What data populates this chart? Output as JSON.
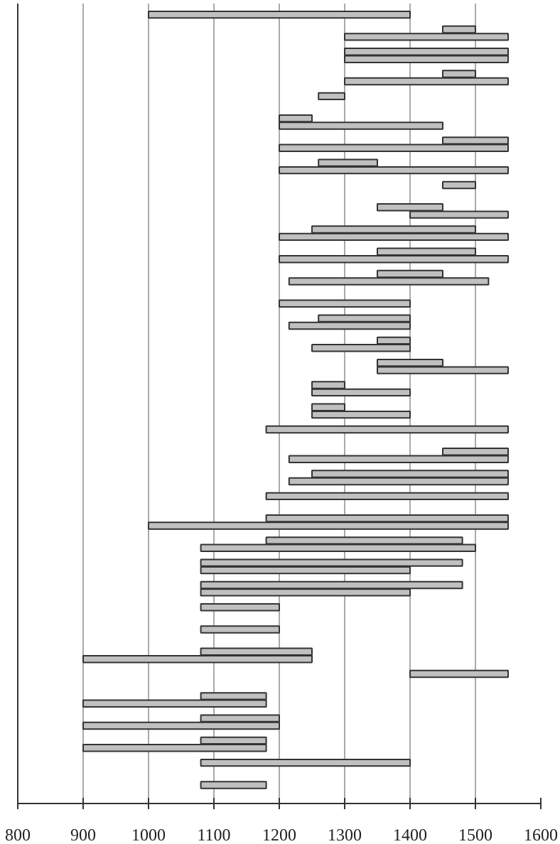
{
  "chart_data": {
    "type": "bar",
    "orientation": "horizontal",
    "color": "#c0c0c0",
    "categories": [
      null,
      null,
      null,
      null,
      null,
      null,
      null,
      null,
      null,
      null,
      null,
      null,
      null,
      null,
      null,
      null,
      null,
      null,
      null,
      null,
      null,
      null,
      null,
      null,
      null,
      null,
      null,
      null,
      null,
      null,
      null,
      null,
      null,
      null,
      null,
      null,
      null,
      null,
      null,
      null,
      null,
      null,
      null,
      null,
      null,
      null,
      null,
      null,
      null,
      null,
      null,
      null,
      null,
      null,
      null,
      null,
      null,
      null,
      null,
      null,
      null,
      null,
      null,
      null,
      null,
      null,
      null,
      null,
      null,
      null,
      null,
      null,
      null,
      null,
      null,
      null,
      null,
      null,
      null,
      null,
      null,
      null,
      null,
      null,
      null,
      null,
      null,
      null,
      null,
      null,
      null,
      null,
      null,
      null,
      null,
      null,
      null,
      null,
      null,
      null,
      null,
      null,
      null,
      null,
      null,
      null,
      null,
      null
    ],
    "base": [
      null,
      1000,
      null,
      1450,
      1300,
      null,
      1300,
      1300,
      null,
      1450,
      1300,
      null,
      1260,
      null,
      null,
      1200,
      1200,
      null,
      1450,
      1200,
      null,
      1260,
      1200,
      null,
      1450,
      null,
      null,
      1350,
      1400,
      null,
      1250,
      1200,
      null,
      1350,
      1200,
      null,
      1350,
      1215,
      null,
      null,
      1200,
      null,
      1260,
      1215,
      null,
      1350,
      1250,
      null,
      1350,
      1350,
      null,
      1250,
      1250,
      null,
      1250,
      1250,
      null,
      1180,
      null,
      null,
      1450,
      1215,
      null,
      1250,
      1215,
      null,
      1180,
      null,
      null,
      1180,
      1000,
      null,
      1180,
      1080,
      null,
      1080,
      1080,
      null,
      1080,
      1080,
      null,
      1080,
      null,
      null,
      1080,
      null,
      null,
      1080,
      900,
      null,
      1400,
      null,
      null,
      1080,
      900,
      null,
      1080,
      900,
      null,
      1080,
      900,
      null,
      1080,
      null,
      null,
      1080,
      null,
      null
    ],
    "values": [
      null,
      400,
      null,
      50,
      250,
      null,
      250,
      250,
      null,
      50,
      250,
      null,
      40,
      null,
      null,
      50,
      250,
      null,
      100,
      350,
      null,
      90,
      350,
      null,
      50,
      null,
      null,
      100,
      150,
      null,
      250,
      350,
      null,
      150,
      350,
      null,
      100,
      305,
      null,
      null,
      200,
      null,
      140,
      185,
      null,
      50,
      150,
      null,
      100,
      200,
      null,
      50,
      150,
      null,
      50,
      150,
      null,
      370,
      null,
      null,
      100,
      335,
      null,
      300,
      335,
      null,
      370,
      null,
      null,
      370,
      550,
      null,
      300,
      420,
      null,
      400,
      320,
      null,
      400,
      320,
      null,
      120,
      null,
      null,
      120,
      null,
      null,
      170,
      350,
      null,
      150,
      null,
      null,
      100,
      280,
      null,
      120,
      300,
      null,
      100,
      280,
      null,
      320,
      null,
      null,
      100,
      null,
      null
    ],
    "xlim": [
      800,
      1600
    ],
    "xticks": [
      800,
      900,
      1000,
      1100,
      1200,
      1300,
      1400,
      1500,
      1600
    ],
    "grid": "x",
    "tick_labels": "x"
  }
}
